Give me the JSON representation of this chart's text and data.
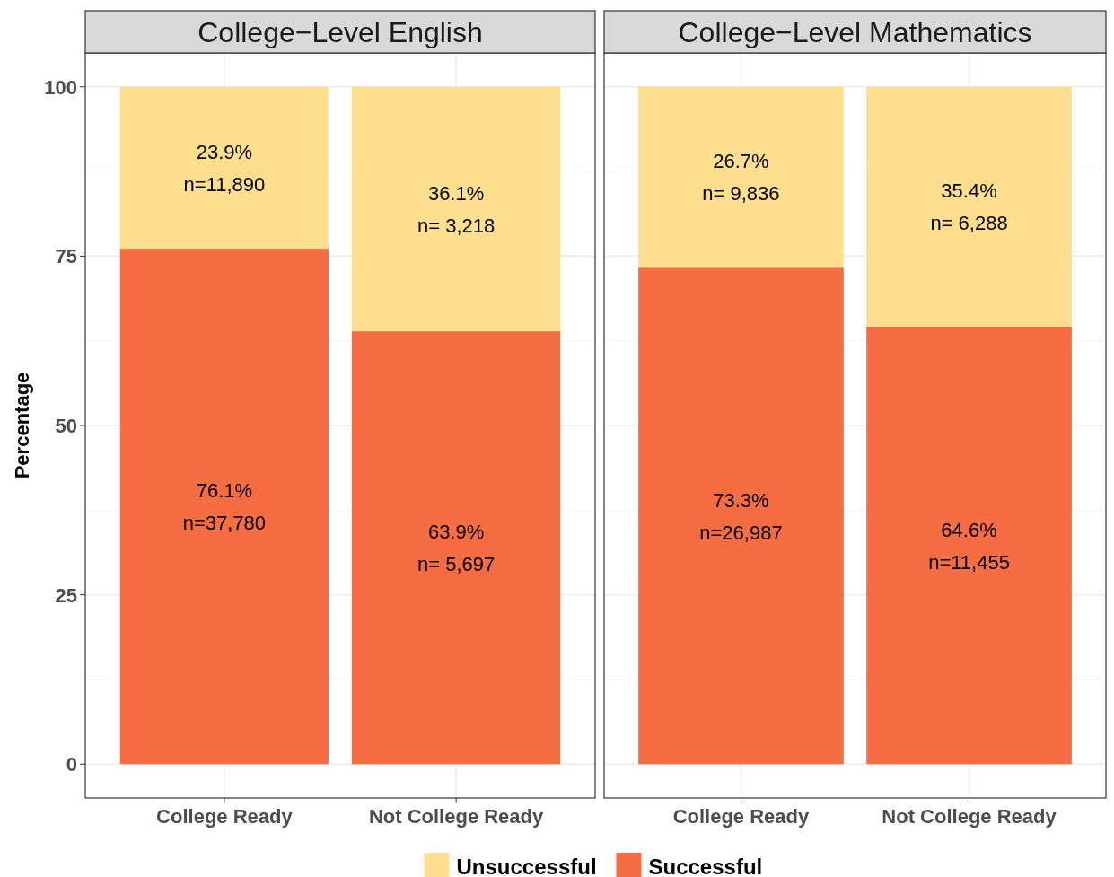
{
  "chart_data": [
    {
      "type": "bar",
      "title": "College−Level English",
      "ylabel": "Percentage",
      "categories": [
        "College Ready",
        "Not College Ready"
      ],
      "stacked": true,
      "ylim": [
        -5,
        105
      ],
      "yticks": [
        0,
        25,
        50,
        75,
        100
      ],
      "grid": true,
      "legend": false,
      "series": [
        {
          "color": "#f46d43",
          "values": [
            76.1,
            63.9
          ],
          "value_labels": [
            "76.1%\nn=37,780",
            "63.9%\nn= 5,697"
          ]
        },
        {
          "color": "#fedf8f",
          "values": [
            23.9,
            36.1
          ],
          "value_labels": [
            "23.9%\nn=11,890",
            "36.1%\nn= 3,218"
          ]
        }
      ]
    },
    {
      "type": "bar",
      "title": "College−Level Mathematics",
      "categories": [
        "College Ready",
        "Not College Ready"
      ],
      "stacked": true,
      "ylim": [
        -5,
        105
      ],
      "yticks": [
        0,
        25,
        50,
        75,
        100
      ],
      "grid": true,
      "legend": "bottom",
      "tick_labels": "x",
      "series": [
        {
          "name": "Successful",
          "color": "#f46d43",
          "values": [
            73.3,
            64.6
          ],
          "value_labels": [
            "73.3%\nn=26,987",
            "64.6%\nn=11,455"
          ]
        },
        {
          "name": "Unsuccessful",
          "color": "#fedf8f",
          "values": [
            26.7,
            35.4
          ],
          "value_labels": [
            "26.7%\nn= 9,836",
            "35.4%\nn= 6,288"
          ]
        }
      ]
    }
  ]
}
